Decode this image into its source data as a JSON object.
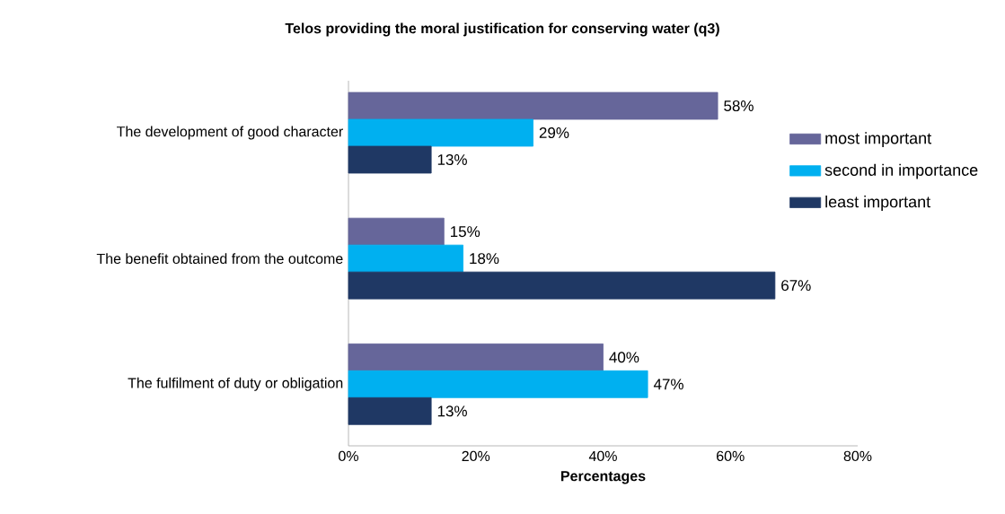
{
  "chart_data": {
    "type": "bar",
    "orientation": "horizontal",
    "title": "Telos providing the moral justification for conserving water (q3)",
    "xlabel": "Percentages",
    "categories": [
      "The development of good character",
      "The benefit obtained from the outcome",
      "The fulfilment of duty or obligation"
    ],
    "series": [
      {
        "name": "most important",
        "color": "#66669a",
        "values": [
          58,
          15,
          40
        ],
        "value_labels": [
          "58%",
          "15%",
          "40%"
        ]
      },
      {
        "name": "second in importance",
        "color": "#00b0f0",
        "values": [
          29,
          18,
          47
        ],
        "value_labels": [
          "29%",
          "18%",
          "47%"
        ]
      },
      {
        "name": "least important",
        "color": "#1f3864",
        "values": [
          13,
          67,
          13
        ],
        "value_labels": [
          "13%",
          "67%",
          "13%"
        ]
      }
    ],
    "xlim": [
      0,
      80
    ],
    "xticks": [
      {
        "value": 0,
        "label": "0%"
      },
      {
        "value": 20,
        "label": "20%"
      },
      {
        "value": 40,
        "label": "40%"
      },
      {
        "value": 60,
        "label": "60%"
      },
      {
        "value": 80,
        "label": "80%"
      }
    ],
    "grid": false,
    "legend": "right"
  }
}
